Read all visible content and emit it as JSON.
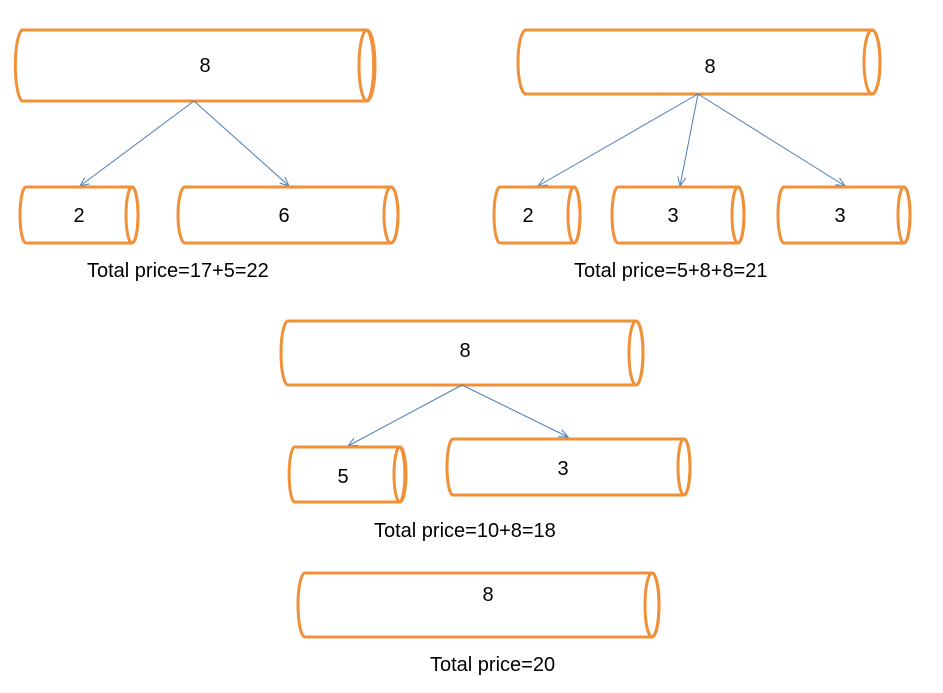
{
  "colors": {
    "rod_stroke": "#F0913A",
    "arrow": "#4A7EBB",
    "text": "#000000"
  },
  "scenarios": [
    {
      "parent": "8",
      "children": [
        "2",
        "6"
      ],
      "total": "Total price=17+5=22"
    },
    {
      "parent": "8",
      "children": [
        "2",
        "3",
        "3"
      ],
      "total": "Total price=5+8+8=21"
    },
    {
      "parent": "8",
      "children": [
        "5",
        "3"
      ],
      "total": "Total price=10+8=18"
    },
    {
      "parent": "8",
      "children": [],
      "total": "Total price=20"
    }
  ]
}
